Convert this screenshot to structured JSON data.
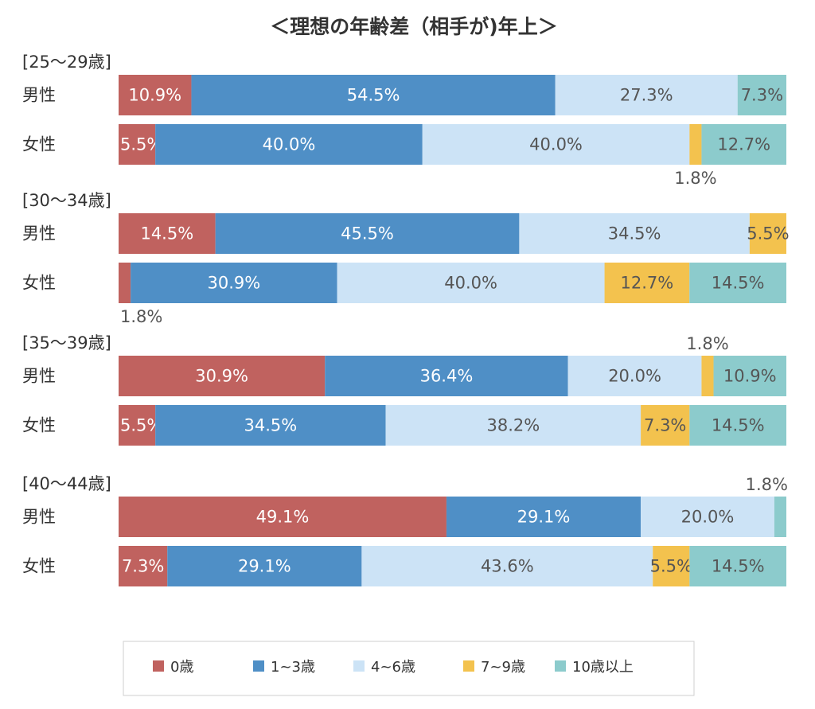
{
  "chart_data": {
    "type": "bar",
    "orientation": "horizontal",
    "stacked": true,
    "title": "＜理想の年齢差（相手が)年上＞",
    "xlim": [
      0,
      100
    ],
    "legend_position": "bottom",
    "grid": false,
    "series": [
      {
        "name": "0歳",
        "color": "#c0625f"
      },
      {
        "name": "1~3歳",
        "color": "#4f8fc6"
      },
      {
        "name": "4~6歳",
        "color": "#cce3f6"
      },
      {
        "name": "7~9歳",
        "color": "#f3c24e"
      },
      {
        "name": "10歳以上",
        "color": "#8ccbcc"
      }
    ],
    "groups": [
      {
        "label": "[25～29歳]",
        "rows": [
          {
            "label": "男性",
            "values": [
              10.9,
              54.5,
              27.3,
              0,
              7.3
            ],
            "labels": [
              "10.9%",
              "54.5%",
              "27.3%",
              "",
              "7.3%"
            ]
          },
          {
            "label": "女性",
            "values": [
              5.5,
              40.0,
              40.0,
              1.8,
              12.7
            ],
            "labels": [
              "5.5%",
              "40.0%",
              "40.0%",
              "1.8%",
              "12.7%"
            ]
          }
        ]
      },
      {
        "label": "[30～34歳]",
        "rows": [
          {
            "label": "男性",
            "values": [
              14.5,
              45.5,
              34.5,
              5.5,
              0
            ],
            "labels": [
              "14.5%",
              "45.5%",
              "34.5%",
              "5.5%",
              ""
            ]
          },
          {
            "label": "女性",
            "values": [
              1.8,
              30.9,
              40.0,
              12.7,
              14.5
            ],
            "labels": [
              "1.8%",
              "30.9%",
              "40.0%",
              "12.7%",
              "14.5%"
            ]
          }
        ]
      },
      {
        "label": "[35～39歳]",
        "rows": [
          {
            "label": "男性",
            "values": [
              30.9,
              36.4,
              20.0,
              1.8,
              10.9
            ],
            "labels": [
              "30.9%",
              "36.4%",
              "20.0%",
              "1.8%",
              "10.9%"
            ]
          },
          {
            "label": "女性",
            "values": [
              5.5,
              34.5,
              38.2,
              7.3,
              14.5
            ],
            "labels": [
              "5.5%",
              "34.5%",
              "38.2%",
              "7.3%",
              "14.5%"
            ]
          }
        ]
      },
      {
        "label": "[40～44歳]",
        "rows": [
          {
            "label": "男性",
            "values": [
              49.1,
              29.1,
              20.0,
              0,
              1.8
            ],
            "labels": [
              "49.1%",
              "29.1%",
              "20.0%",
              "",
              "1.8%"
            ]
          },
          {
            "label": "女性",
            "values": [
              7.3,
              29.1,
              43.6,
              5.5,
              14.5
            ],
            "labels": [
              "7.3%",
              "29.1%",
              "43.6%",
              "5.5%",
              "14.5%"
            ]
          }
        ]
      }
    ]
  }
}
